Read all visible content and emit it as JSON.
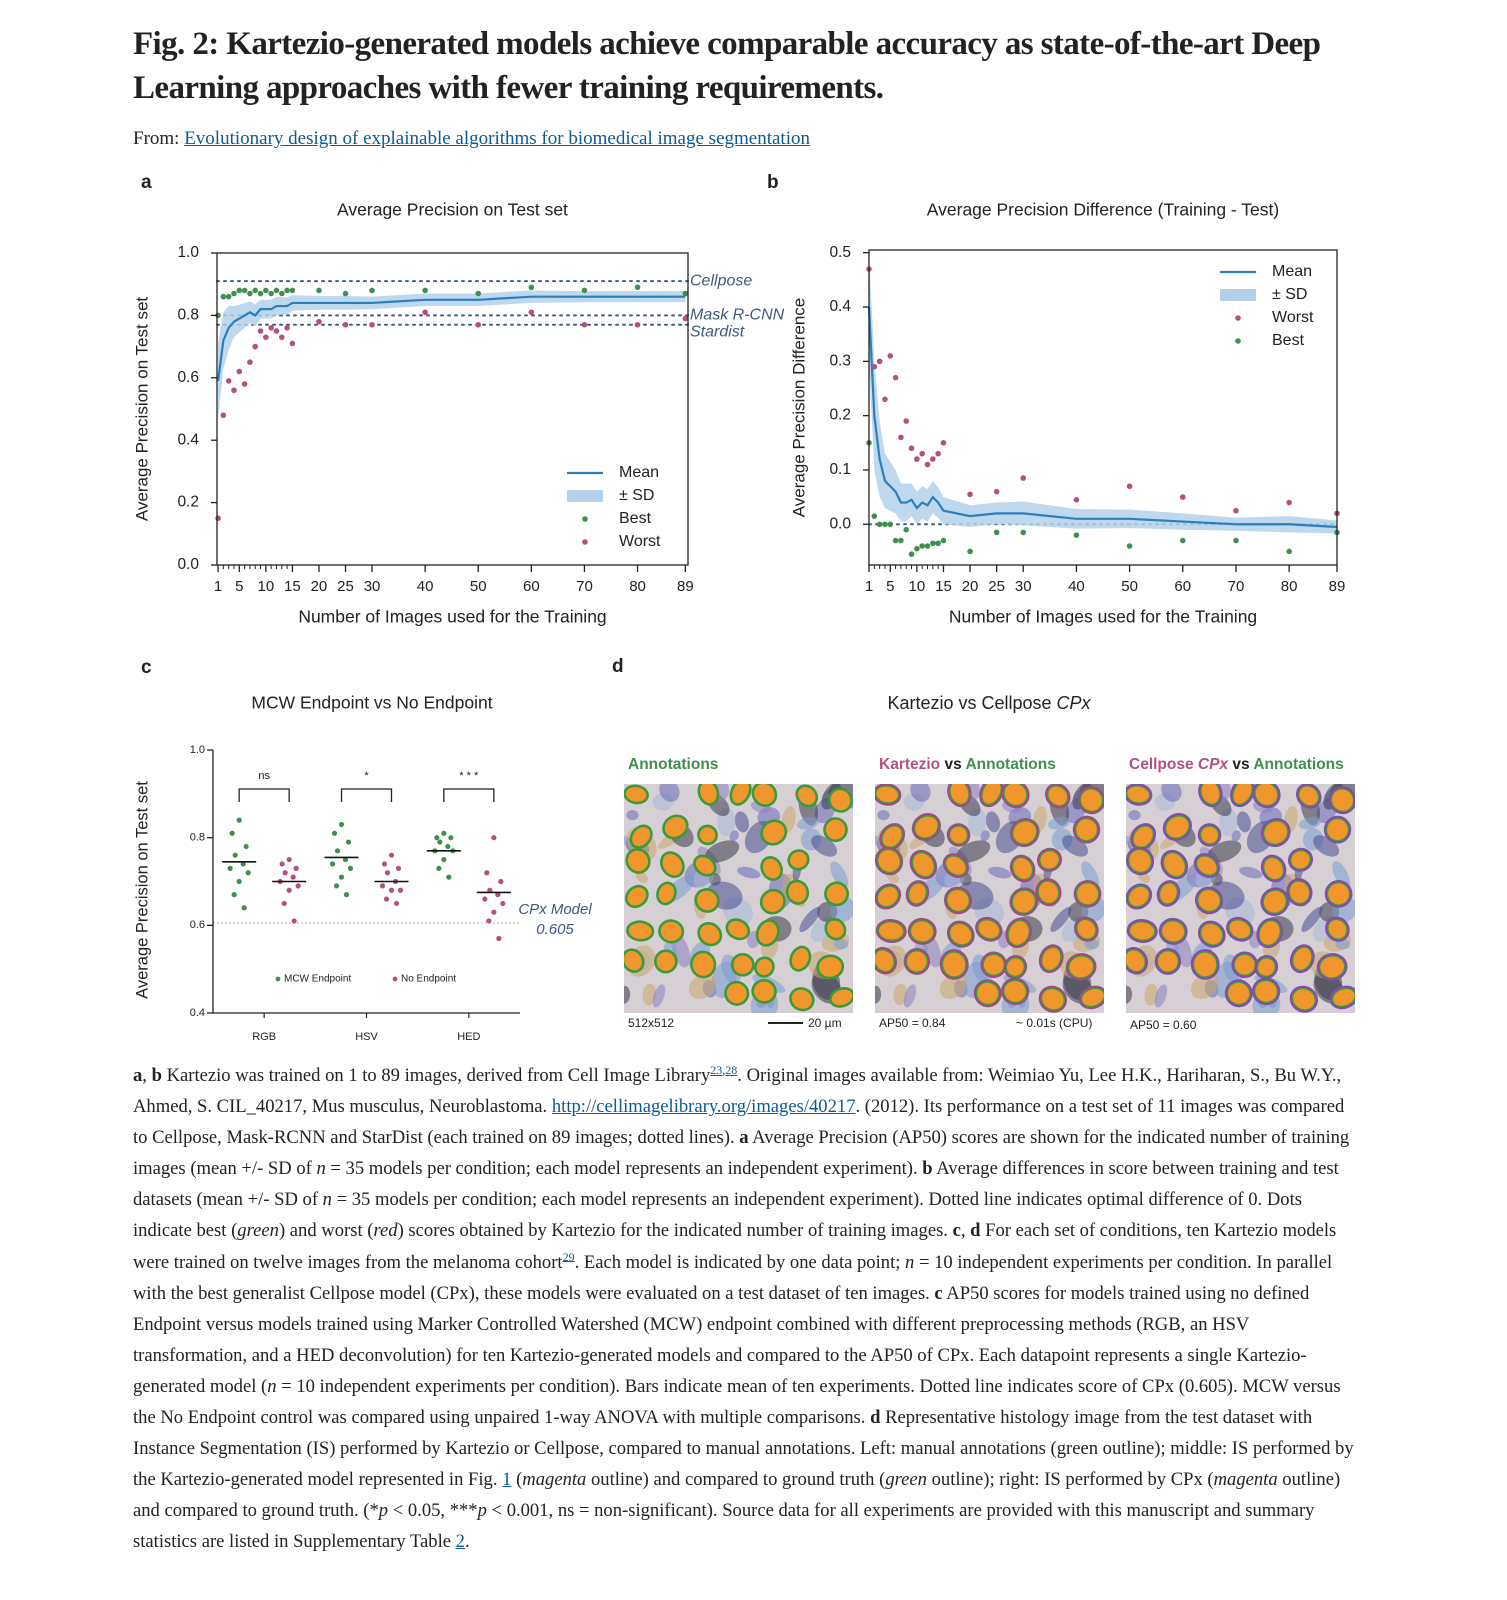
{
  "header": {
    "title": "Fig. 2: Kartezio-generated models achieve comparable accuracy as state-of-the-art Deep Learning approaches with fewer training requirements.",
    "from_label": "From:",
    "from_link": "Evolutionary design of explainable algorithms for biomedical image segmentation"
  },
  "chart_data": [
    {
      "type": "line",
      "panel": "a",
      "title": "Average Precision on Test set",
      "xlabel": "Number of Images used for the Training",
      "ylabel": "Average Precision on Test set",
      "x": [
        1,
        2,
        3,
        4,
        5,
        6,
        7,
        8,
        9,
        10,
        11,
        12,
        13,
        14,
        15,
        20,
        25,
        30,
        40,
        50,
        60,
        70,
        80,
        89
      ],
      "xlim": [
        0.8,
        89.5
      ],
      "xticks": [
        1,
        5,
        10,
        15,
        20,
        25,
        30,
        40,
        50,
        60,
        70,
        80,
        89
      ],
      "minor_xticks": [
        2,
        3,
        4,
        6,
        7,
        8,
        9,
        11,
        12,
        13,
        14
      ],
      "ylim": [
        0,
        1.0
      ],
      "yticks": [
        {
          "value": 0,
          "label": "0.0"
        },
        0.2,
        0.4,
        0.6,
        0.8,
        {
          "value": 1.0,
          "label": "1.0"
        }
      ],
      "reference_lines": [
        {
          "label": "Cellpose",
          "value": 0.91
        },
        {
          "label": "Mask R-CNN",
          "value": 0.8
        },
        {
          "label": "Stardist",
          "value": 0.77
        }
      ],
      "legend": "lower right",
      "series": [
        {
          "name": "Mean",
          "kind": "line",
          "color": "#2f7ebc",
          "values": [
            0.59,
            0.72,
            0.76,
            0.78,
            0.79,
            0.8,
            0.81,
            0.8,
            0.82,
            0.82,
            0.82,
            0.83,
            0.83,
            0.83,
            0.84,
            0.84,
            0.84,
            0.84,
            0.85,
            0.85,
            0.86,
            0.86,
            0.86,
            0.86
          ]
        },
        {
          "name": "± SD",
          "kind": "band",
          "color": "#b3d1ea",
          "values": [
            0.12,
            0.09,
            0.07,
            0.05,
            0.045,
            0.04,
            0.035,
            0.035,
            0.03,
            0.03,
            0.03,
            0.03,
            0.028,
            0.028,
            0.025,
            0.022,
            0.022,
            0.02,
            0.02,
            0.02,
            0.02,
            0.018,
            0.018,
            0.018
          ]
        },
        {
          "name": "Best",
          "kind": "scatter",
          "color": "#3f8f4f",
          "values": [
            0.8,
            0.86,
            0.86,
            0.87,
            0.88,
            0.88,
            0.87,
            0.88,
            0.87,
            0.88,
            0.87,
            0.88,
            0.87,
            0.88,
            0.88,
            0.88,
            0.87,
            0.88,
            0.88,
            0.87,
            0.89,
            0.88,
            0.89,
            0.87
          ]
        },
        {
          "name": "Worst",
          "kind": "scatter",
          "color": "#b44f86",
          "values": [
            0.15,
            0.48,
            0.59,
            0.56,
            0.62,
            0.58,
            0.65,
            0.7,
            0.75,
            0.73,
            0.76,
            0.75,
            0.73,
            0.76,
            0.71,
            0.78,
            0.77,
            0.77,
            0.81,
            0.77,
            0.81,
            0.77,
            0.77,
            0.79
          ]
        }
      ]
    },
    {
      "type": "line",
      "panel": "b",
      "title": "Average Precision Difference (Training - Test)",
      "xlabel": "Number of Images used for the Training",
      "ylabel": "Average Precision Difference",
      "x": [
        1,
        2,
        3,
        4,
        5,
        6,
        7,
        8,
        9,
        10,
        11,
        12,
        13,
        14,
        15,
        20,
        25,
        30,
        40,
        50,
        60,
        70,
        80,
        89
      ],
      "xlim": [
        1,
        89
      ],
      "xticks": [
        1,
        5,
        10,
        15,
        20,
        25,
        30,
        40,
        50,
        60,
        70,
        80,
        89
      ],
      "minor_xticks": [
        2,
        3,
        4,
        6,
        7,
        8,
        9,
        11,
        12,
        13,
        14
      ],
      "ylim": [
        -0.075,
        0.505
      ],
      "yticks": [
        {
          "value": 0,
          "label": "0.0"
        },
        0.1,
        0.2,
        0.3,
        0.4,
        0.5
      ],
      "reference_lines": [
        {
          "value": 0
        }
      ],
      "legend": "upper right",
      "series": [
        {
          "name": "Mean",
          "kind": "line",
          "color": "#2f7ebc",
          "values": [
            0.4,
            0.2,
            0.12,
            0.08,
            0.07,
            0.06,
            0.04,
            0.04,
            0.045,
            0.03,
            0.04,
            0.035,
            0.05,
            0.04,
            0.025,
            0.015,
            0.02,
            0.02,
            0.01,
            0.01,
            0.005,
            0,
            0,
            -0.005
          ]
        },
        {
          "name": "± SD",
          "kind": "band",
          "color": "#b3d1ea",
          "values": [
            0.1,
            0.1,
            0.07,
            0.05,
            0.045,
            0.04,
            0.035,
            0.035,
            0.03,
            0.03,
            0.03,
            0.03,
            0.03,
            0.028,
            0.025,
            0.02,
            0.02,
            0.022,
            0.018,
            0.017,
            0.015,
            0.012,
            0.015,
            0.012
          ]
        },
        {
          "name": "Worst",
          "kind": "scatter",
          "color": "#b44f86",
          "values": [
            0.47,
            0.29,
            0.3,
            0.23,
            0.31,
            0.27,
            0.16,
            0.19,
            0.14,
            0.12,
            0.13,
            0.11,
            0.12,
            0.13,
            0.15,
            0.055,
            0.06,
            0.085,
            0.045,
            0.07,
            0.05,
            0.025,
            0.04,
            0.02
          ]
        },
        {
          "name": "Best",
          "kind": "scatter",
          "color": "#3f8f4f",
          "values": [
            0.15,
            0.015,
            0,
            0,
            0,
            -0.03,
            -0.03,
            -0.01,
            -0.055,
            -0.045,
            -0.04,
            -0.04,
            -0.035,
            -0.035,
            -0.03,
            -0.05,
            -0.015,
            -0.015,
            -0.02,
            -0.04,
            -0.03,
            -0.03,
            -0.05,
            -0.015
          ]
        }
      ]
    },
    {
      "type": "strip",
      "panel": "c",
      "title": "MCW Endpoint vs No Endpoint",
      "ylabel": "Average Precision on Test set",
      "categories": [
        "RGB",
        "HSV",
        "HED"
      ],
      "ylim": [
        0.4,
        1.0
      ],
      "yticks": [
        0.4,
        0.6,
        0.8,
        {
          "value": 1.0,
          "label": "1.0"
        }
      ],
      "significance": [
        "ns",
        "*",
        "* * *"
      ],
      "reference": {
        "label": "CPx Model",
        "value": 0.605
      },
      "series": [
        {
          "name": "MCW Endpoint",
          "color": "#3f8f4f",
          "values": [
            [
              0.84,
              0.81,
              0.78,
              0.76,
              0.74,
              0.73,
              0.72,
              0.7,
              0.67,
              0.64
            ],
            [
              0.83,
              0.81,
              0.79,
              0.77,
              0.75,
              0.74,
              0.73,
              0.71,
              0.69,
              0.67
            ],
            [
              0.81,
              0.8,
              0.8,
              0.79,
              0.78,
              0.77,
              0.77,
              0.75,
              0.73,
              0.71
            ]
          ],
          "means": [
            0.745,
            0.755,
            0.77
          ]
        },
        {
          "name": "No Endpoint",
          "color": "#b44f86",
          "values": [
            [
              0.75,
              0.74,
              0.73,
              0.72,
              0.71,
              0.7,
              0.69,
              0.68,
              0.65,
              0.61
            ],
            [
              0.76,
              0.74,
              0.73,
              0.72,
              0.7,
              0.69,
              0.68,
              0.68,
              0.66,
              0.65
            ],
            [
              0.8,
              0.72,
              0.7,
              0.68,
              0.67,
              0.66,
              0.65,
              0.63,
              0.61,
              0.57
            ]
          ],
          "means": [
            0.7,
            0.7,
            0.675
          ]
        }
      ]
    }
  ],
  "panel_d": {
    "label": "d",
    "title_parts": [
      "Kartezio vs Cellpose ",
      "CPx"
    ],
    "images": [
      {
        "title_parts": [
          "Annotations"
        ],
        "captions": [
          "512x512",
          "20 µm"
        ]
      },
      {
        "title_parts": [
          "Kartezio",
          " vs ",
          "Annotations"
        ],
        "captions": [
          "AP50 = 0.84",
          "~ 0.01s (CPU)"
        ]
      },
      {
        "title_parts": [
          "Cellpose ",
          "CPx",
          " vs ",
          "Annotations"
        ],
        "captions": [
          "AP50 = 0.60"
        ]
      }
    ]
  },
  "caption": [
    "a",
    ", ",
    "b",
    " Kartezio was trained on 1 to 89 images, derived from Cell Image Library",
    "23",
    ",",
    "28",
    ". Original images available from: Weimiao Yu, Lee H.K., Hariharan, S., Bu W.Y., Ahmed, S. CIL_40217, Mus musculus, Neuroblastoma. ",
    "http://cellimagelibrary.org/images/40217",
    ". (2012). Its performance on a test set of 11 images was compared to Cellpose, Mask-RCNN and StarDist (each trained on 89 images; dotted lines). ",
    "a",
    " Average Precision (AP50) scores are shown for the indicated number of training images (mean +/- SD of ",
    "n",
    " = 35 models per condition; each model represents an independent experiment). ",
    "b",
    " Average differences in score between training and test datasets (mean +/- SD of ",
    "n",
    " = 35 models per condition; each model represents an independent experiment). Dotted line indicates optimal difference of 0. Dots indicate best (",
    "green",
    ") and worst (",
    "red",
    ") scores obtained by Kartezio for the indicated number of training images. ",
    "c",
    ", ",
    "d",
    " For each set of conditions, ten Kartezio models were trained on twelve images from the melanoma cohort",
    "29",
    ". Each model is indicated by one data point; ",
    "n",
    " = 10 independent experiments per condition. In parallel with the best generalist Cellpose model (CPx), these models were evaluated on a test dataset of ten images. ",
    "c",
    " AP50 scores for models trained using no defined Endpoint versus models trained using Marker Controlled Watershed (MCW) endpoint combined with different preprocessing methods (RGB, an HSV transformation, and a HED deconvolution) for ten Kartezio-generated models and compared to the AP50 of CPx. Each datapoint represents a single Kartezio-generated model (",
    "n",
    " = 10 independent experiments per condition). Bars indicate mean of ten experiments. Dotted line indicates score of CPx (0.605). MCW versus the No Endpoint control was compared using unpaired 1-way ANOVA with multiple comparisons. ",
    "d",
    " Representative histology image from the test dataset with Instance Segmentation (IS) performed by Kartezio or Cellpose, compared to manual annotations. Left: manual annotations (green outline); middle: IS performed by the Kartezio-generated model represented in Fig. ",
    "1",
    " (",
    "magenta",
    " outline) and compared to ground truth (",
    "green",
    " outline); right: IS performed by CPx (",
    "magenta",
    " outline) and compared to ground truth. (*",
    "p",
    " < 0.05, ***",
    "p",
    " < 0.001, ns = non-significant). Source data for all experiments are provided with this manuscript and summary statistics are listed in Supplementary Table ",
    "2",
    "."
  ]
}
